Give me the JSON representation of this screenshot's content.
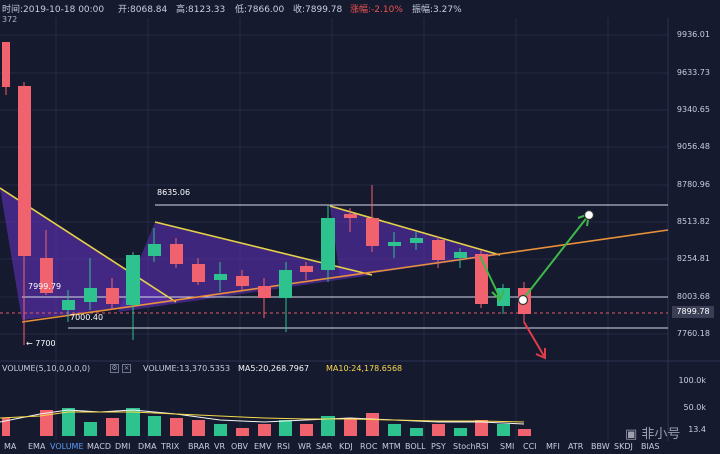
{
  "header": {
    "time": "时间:2019-10-18 00:00",
    "open": "开:8068.84",
    "high": "高:8123.33",
    "low": "低:7866.00",
    "close": "收:7899.78",
    "change": "涨幅:-2.10%",
    "amplitude": "振幅:3.27%",
    "sub_value": "372"
  },
  "price_axis": [
    "9936.01",
    "9633.73",
    "9340.65",
    "9056.48",
    "8780.96",
    "8513.82",
    "8254.81",
    "8003.68",
    "7760.18"
  ],
  "current_price": "7899.78",
  "annotations": {
    "level_high": "8635.06",
    "level_mid": "7999.79",
    "level_low": "7000.40",
    "arrow_left": "← 7700"
  },
  "volume_panel": {
    "indicator": "VOLUME(5,10,0,0,0,0)",
    "volume": "VOLUME:13,370.5353",
    "ma5": "MA5:20,268.7967",
    "ma10": "MA10:24,178.6568",
    "axis": [
      "100.0k",
      "50.0k"
    ],
    "axis_unit": "13.4"
  },
  "tabs": [
    "MA",
    "EMA",
    "VOLUME",
    "MACD",
    "DMI",
    "DMA",
    "TRIX",
    "BRAR",
    "VR",
    "OBV",
    "EMV",
    "RSI",
    "WR",
    "SAR",
    "KDJ",
    "ROC",
    "MTM",
    "BOLL",
    "PSY",
    "StochRSI",
    "SMI",
    "CCI",
    "MFI",
    "ATR",
    "BBW",
    "SKDJ",
    "BIAS"
  ],
  "active_tab": "VOLUME",
  "colors": {
    "background": "#151a2e",
    "candle_down": "#f0626e",
    "candle_up": "#2ec28e",
    "triangle_fill": "#5a2fb0",
    "trend_yellow": "#e6d24a",
    "trend_orange": "#e8903a",
    "arrow_green": "#3fb84a",
    "arrow_red": "#e03c4a"
  },
  "watermark": "非小号"
}
